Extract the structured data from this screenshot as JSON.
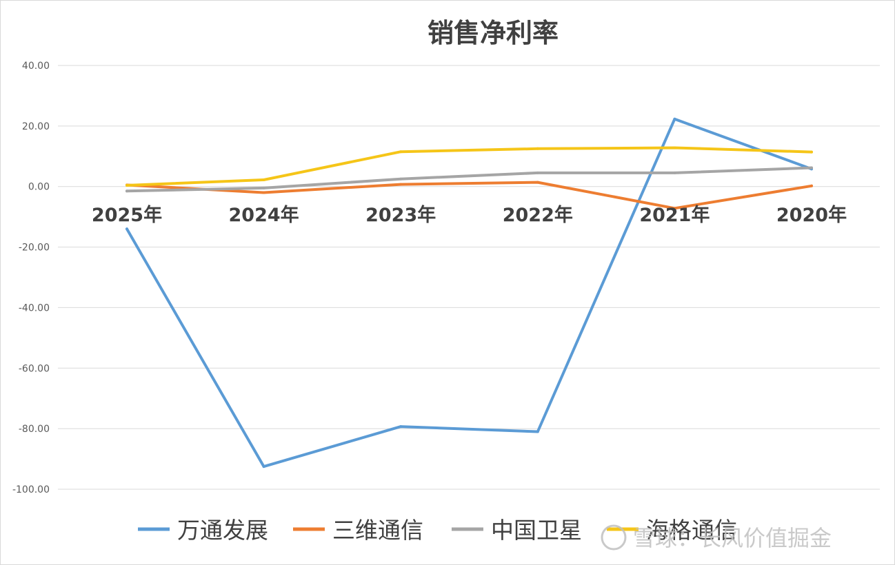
{
  "chart_data": {
    "type": "line",
    "title": "销售净利率",
    "categories": [
      "2025年",
      "2024年",
      "2023年",
      "2022年",
      "2021年",
      "2020年"
    ],
    "ylim": [
      -100,
      40
    ],
    "yticks": [
      "40.00",
      "20.00",
      "0.00",
      "-20.00",
      "-40.00",
      "-60.00",
      "-80.00",
      "-100.00"
    ],
    "grid": true,
    "legend_position": "bottom",
    "series": [
      {
        "name": "万通发展",
        "color": "#5b9bd5",
        "values": [
          -14,
          -92.5,
          -79.3,
          -81.0,
          22.3,
          5.8
        ]
      },
      {
        "name": "三维通信",
        "color": "#ed7d31",
        "values": [
          0.5,
          -2.0,
          0.7,
          1.4,
          -7.2,
          0.2
        ]
      },
      {
        "name": "中国卫星",
        "color": "#a5a5a5",
        "values": [
          -1.5,
          -0.5,
          2.5,
          4.5,
          4.5,
          6.2
        ]
      },
      {
        "name": "海格通信",
        "color": "#f5c518",
        "values": [
          0.4,
          2.2,
          11.5,
          12.5,
          12.8,
          11.4
        ]
      }
    ]
  },
  "watermark": {
    "text": "雪球：长风价值掘金"
  }
}
